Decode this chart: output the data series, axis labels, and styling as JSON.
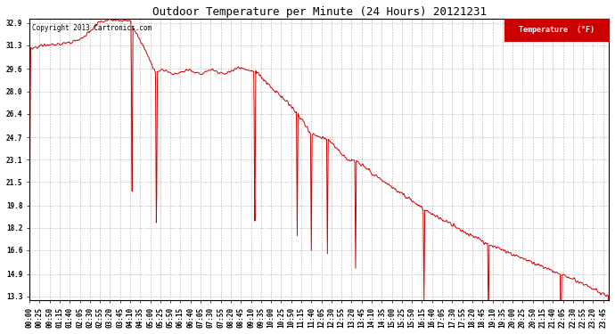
{
  "title": "Outdoor Temperature per Minute (24 Hours) 20121231",
  "copyright_text": "Copyright 2013 Cartronics.com",
  "legend_label": "Temperature  (°F)",
  "line_color": "#cc0000",
  "legend_bg_color": "#cc0000",
  "legend_text_color": "#ffffff",
  "background_color": "#ffffff",
  "grid_color": "#999999",
  "yticks": [
    13.3,
    14.9,
    16.6,
    18.2,
    19.8,
    21.5,
    23.1,
    24.7,
    26.4,
    28.0,
    29.6,
    31.3,
    32.9
  ],
  "ymin": 13.0,
  "ymax": 33.2,
  "total_minutes": 1440,
  "xtick_interval": 25
}
